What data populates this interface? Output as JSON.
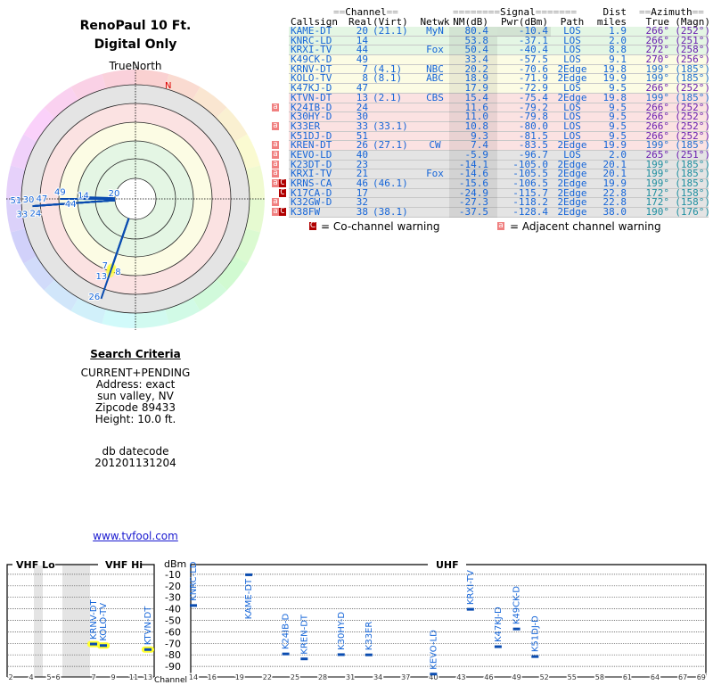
{
  "header": {
    "title": "RenoPaul 10 Ft.",
    "subtitle": "Digital Only"
  },
  "polar": {
    "north_label": "TrueNorth",
    "n_marker": "N"
  },
  "search": {
    "heading": "Search Criteria",
    "lines": [
      "CURRENT+PENDING",
      "Address: exact",
      "sun valley, NV",
      "Zipcode 89433",
      "Height: 10.0 ft."
    ],
    "db_label": "db datecode",
    "db_value": "201201131204",
    "link": "www.tvfool.com"
  },
  "table": {
    "group_channel": "Channel",
    "group_signal": "Signal",
    "group_dist": "Dist",
    "group_azimuth": "Azimuth",
    "headers": {
      "callsign": "Callsign",
      "real": "Real",
      "virt": "(Virt)",
      "netwk": "Netwk",
      "nm": "NM(dB)",
      "pwr": "Pwr(dBm)",
      "path": "Path",
      "dist": "miles",
      "true": "True",
      "magn": "(Magn)"
    },
    "rows": [
      {
        "callsign": "KAME-DT",
        "real": "20",
        "virt": "(21.1)",
        "netwk": "MyN",
        "nm": "80.4",
        "pwr": "-10.4",
        "path": "LOS",
        "dist": "1.9",
        "true": "266°",
        "magn": "(252°)",
        "band": "green",
        "az_color": "#6a1fb0",
        "warn": ""
      },
      {
        "callsign": "KNRC-LD",
        "real": "14",
        "virt": "",
        "netwk": "",
        "nm": "53.8",
        "pwr": "-37.1",
        "path": "LOS",
        "dist": "2.0",
        "true": "266°",
        "magn": "(251°)",
        "band": "green",
        "az_color": "#6a1fb0",
        "warn": ""
      },
      {
        "callsign": "KRXI-TV",
        "real": "44",
        "virt": "",
        "netwk": "Fox",
        "nm": "50.4",
        "pwr": "-40.4",
        "path": "LOS",
        "dist": "8.8",
        "true": "272°",
        "magn": "(258°)",
        "band": "green",
        "az_color": "#6a1fb0",
        "warn": ""
      },
      {
        "callsign": "K49CK-D",
        "real": "49",
        "virt": "",
        "netwk": "",
        "nm": "33.4",
        "pwr": "-57.5",
        "path": "LOS",
        "dist": "9.1",
        "true": "270°",
        "magn": "(256°)",
        "band": "yellow",
        "az_color": "#6a1fb0",
        "warn": ""
      },
      {
        "callsign": "KRNV-DT",
        "real": "7",
        "virt": "(4.1)",
        "netwk": "NBC",
        "nm": "20.2",
        "pwr": "-70.6",
        "path": "2Edge",
        "dist": "19.8",
        "true": "199°",
        "magn": "(185°)",
        "band": "yellow",
        "az_color": "#1f6fd0",
        "warn": ""
      },
      {
        "callsign": "KOLO-TV",
        "real": "8",
        "virt": "(8.1)",
        "netwk": "ABC",
        "nm": "18.9",
        "pwr": "-71.9",
        "path": "2Edge",
        "dist": "19.9",
        "true": "199°",
        "magn": "(185°)",
        "band": "yellow",
        "az_color": "#1f6fd0",
        "warn": ""
      },
      {
        "callsign": "K47KJ-D",
        "real": "47",
        "virt": "",
        "netwk": "",
        "nm": "17.9",
        "pwr": "-72.9",
        "path": "LOS",
        "dist": "9.5",
        "true": "266°",
        "magn": "(252°)",
        "band": "yellow",
        "az_color": "#6a1fb0",
        "warn": ""
      },
      {
        "callsign": "KTVN-DT",
        "real": "13",
        "virt": "(2.1)",
        "netwk": "CBS",
        "nm": "15.4",
        "pwr": "-75.4",
        "path": "2Edge",
        "dist": "19.8",
        "true": "199°",
        "magn": "(185°)",
        "band": "pink",
        "az_color": "#1f6fd0",
        "warn": ""
      },
      {
        "callsign": "K24IB-D",
        "real": "24",
        "virt": "",
        "netwk": "",
        "nm": "11.6",
        "pwr": "-79.2",
        "path": "LOS",
        "dist": "9.5",
        "true": "266°",
        "magn": "(252°)",
        "band": "pink",
        "az_color": "#6a1fb0",
        "warn": "a"
      },
      {
        "callsign": "K30HY-D",
        "real": "30",
        "virt": "",
        "netwk": "",
        "nm": "11.0",
        "pwr": "-79.8",
        "path": "LOS",
        "dist": "9.5",
        "true": "266°",
        "magn": "(252°)",
        "band": "pink",
        "az_color": "#6a1fb0",
        "warn": ""
      },
      {
        "callsign": "K33ER",
        "real": "33",
        "virt": "(33.1)",
        "netwk": "",
        "nm": "10.8",
        "pwr": "-80.0",
        "path": "LOS",
        "dist": "9.5",
        "true": "266°",
        "magn": "(252°)",
        "band": "pink",
        "az_color": "#6a1fb0",
        "warn": "a"
      },
      {
        "callsign": "K51DJ-D",
        "real": "51",
        "virt": "",
        "netwk": "",
        "nm": "9.3",
        "pwr": "-81.5",
        "path": "LOS",
        "dist": "9.5",
        "true": "266°",
        "magn": "(252°)",
        "band": "pink",
        "az_color": "#6a1fb0",
        "warn": ""
      },
      {
        "callsign": "KREN-DT",
        "real": "26",
        "virt": "(27.1)",
        "netwk": "CW",
        "nm": "7.4",
        "pwr": "-83.5",
        "path": "2Edge",
        "dist": "19.9",
        "true": "199°",
        "magn": "(185°)",
        "band": "pink",
        "az_color": "#1f6fd0",
        "warn": "a"
      },
      {
        "callsign": "KEVO-LD",
        "real": "40",
        "virt": "",
        "netwk": "",
        "nm": "-5.9",
        "pwr": "-96.7",
        "path": "LOS",
        "dist": "2.0",
        "true": "265°",
        "magn": "(251°)",
        "band": "gray",
        "az_color": "#6a1fb0",
        "warn": "a"
      },
      {
        "callsign": "K23DT-D",
        "real": "23",
        "virt": "",
        "netwk": "",
        "nm": "-14.1",
        "pwr": "-105.0",
        "path": "2Edge",
        "dist": "20.1",
        "true": "199°",
        "magn": "(185°)",
        "band": "gray",
        "az_color": "#1f8fa0",
        "warn": "a"
      },
      {
        "callsign": "KRXI-TV",
        "real": "21",
        "virt": "",
        "netwk": "Fox",
        "nm": "-14.6",
        "pwr": "-105.5",
        "path": "2Edge",
        "dist": "20.1",
        "true": "199°",
        "magn": "(185°)",
        "band": "gray",
        "az_color": "#1f8fa0",
        "warn": "a"
      },
      {
        "callsign": "KRNS-CA",
        "real": "46",
        "virt": "(46.1)",
        "netwk": "",
        "nm": "-15.6",
        "pwr": "-106.5",
        "path": "2Edge",
        "dist": "19.9",
        "true": "199°",
        "magn": "(185°)",
        "band": "gray",
        "az_color": "#1f8fa0",
        "warn": "aC"
      },
      {
        "callsign": "K17CA-D",
        "real": "17",
        "virt": "",
        "netwk": "",
        "nm": "-24.9",
        "pwr": "-115.7",
        "path": "2Edge",
        "dist": "22.8",
        "true": "172°",
        "magn": "(158°)",
        "band": "gray",
        "az_color": "#1f8fa0",
        "warn": "C"
      },
      {
        "callsign": "K32GW-D",
        "real": "32",
        "virt": "",
        "netwk": "",
        "nm": "-27.3",
        "pwr": "-118.2",
        "path": "2Edge",
        "dist": "22.8",
        "true": "172°",
        "magn": "(158°)",
        "band": "gray",
        "az_color": "#1f8fa0",
        "warn": "a"
      },
      {
        "callsign": "K38FW",
        "real": "38",
        "virt": "(38.1)",
        "netwk": "",
        "nm": "-37.5",
        "pwr": "-128.4",
        "path": "2Edge",
        "dist": "38.0",
        "true": "190°",
        "magn": "(176°)",
        "band": "gray",
        "az_color": "#1f8fa0",
        "warn": "aC"
      }
    ],
    "legend_co": "= Co-channel warning",
    "legend_adj": "= Adjacent channel warning",
    "badge_a": "a",
    "badge_c": "C"
  },
  "colors": {
    "green": "#e4f6e4",
    "yellow": "#fcfce4",
    "pink": "#fbe2e2",
    "gray": "#e4e4e4",
    "text": "#1565d8"
  },
  "chart_data": {
    "type": "scatter",
    "title": "",
    "ylabel": "dBm",
    "xlabel": "Channel",
    "band_labels": [
      "VHF Lo",
      "VHF Hi",
      "UHF"
    ],
    "ylim": [
      -100,
      0
    ],
    "y_ticks": [
      "-10",
      "-20",
      "-30",
      "-40",
      "-50",
      "-60",
      "-70",
      "-80",
      "-90"
    ],
    "vhf_ticks": [
      "2",
      "4",
      "5",
      "6",
      "7",
      "9",
      "11",
      "13"
    ],
    "uhf_ticks": [
      "14",
      "16",
      "19",
      "22",
      "25",
      "28",
      "31",
      "34",
      "37",
      "40",
      "43",
      "46",
      "49",
      "52",
      "55",
      "58",
      "61",
      "64",
      "67",
      "69"
    ],
    "points": [
      {
        "label": "KRNV-DT",
        "channel": 7,
        "dbm": -70.6,
        "highlight": true
      },
      {
        "label": "KOLO-TV",
        "channel": 8,
        "dbm": -71.9,
        "highlight": true
      },
      {
        "label": "KTVN-DT",
        "channel": 13,
        "dbm": -75.4,
        "highlight": true
      },
      {
        "label": "KNRC-LD",
        "channel": 14,
        "dbm": -37.1
      },
      {
        "label": "KAME-DT",
        "channel": 20,
        "dbm": -10.4
      },
      {
        "label": "K24IB-D",
        "channel": 24,
        "dbm": -79.2
      },
      {
        "label": "KREN-DT",
        "channel": 26,
        "dbm": -83.5
      },
      {
        "label": "K30HY-D",
        "channel": 30,
        "dbm": -79.8
      },
      {
        "label": "K33ER",
        "channel": 33,
        "dbm": -80.0
      },
      {
        "label": "KEVO-LD",
        "channel": 40,
        "dbm": -96.7
      },
      {
        "label": "KRXI-TV",
        "channel": 44,
        "dbm": -40.4
      },
      {
        "label": "K47KJ-D",
        "channel": 47,
        "dbm": -72.9
      },
      {
        "label": "K49CK-D",
        "channel": 49,
        "dbm": -57.5
      },
      {
        "label": "K51DJ-D",
        "channel": 51,
        "dbm": -81.5
      }
    ]
  }
}
